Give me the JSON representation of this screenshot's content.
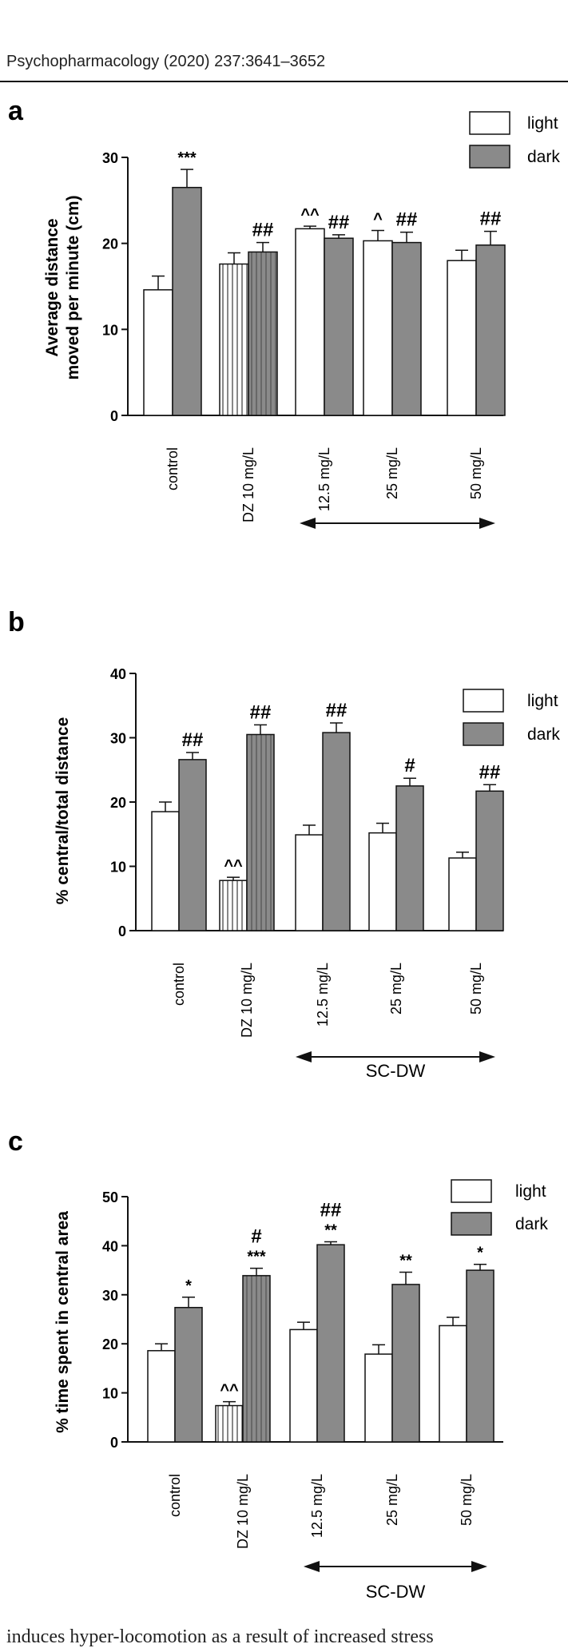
{
  "header": {
    "journal": "Psychopharmacology (2020) 237:3641–3652"
  },
  "footer": {
    "text": "induces hyper-locomotion as a result of increased stress"
  },
  "legend_labels": {
    "light": "light",
    "dark": "dark"
  },
  "group_label": "SC-DW",
  "chart_data": [
    {
      "panel": "a",
      "type": "bar",
      "ylabel": "Average distance moved per minute (cm)",
      "ylabel_lines": [
        "Average distance",
        "moved per minute (cm)"
      ],
      "ylim": [
        0,
        30
      ],
      "yticks": [
        0,
        10,
        20,
        30
      ],
      "categories": [
        "control",
        "DZ 10 mg/L",
        "12.5 mg/L",
        "25 mg/L",
        "50 mg/L"
      ],
      "series": [
        {
          "name": "light",
          "values": [
            14.6,
            17.6,
            21.7,
            20.3,
            18.0
          ],
          "errors": [
            1.6,
            1.3,
            0.3,
            1.2,
            1.2
          ]
        },
        {
          "name": "dark",
          "values": [
            26.5,
            19.0,
            20.6,
            20.1,
            19.8
          ],
          "errors": [
            2.1,
            1.1,
            0.4,
            1.2,
            1.6
          ]
        }
      ],
      "annotations": [
        {
          "category": 0,
          "series": "dark",
          "text": "***"
        },
        {
          "category": 1,
          "series": "dark",
          "text": "##"
        },
        {
          "category": 2,
          "series": "light",
          "text": "^^"
        },
        {
          "category": 2,
          "series": "dark",
          "text": "##"
        },
        {
          "category": 3,
          "series": "light",
          "text": "^"
        },
        {
          "category": 3,
          "series": "dark",
          "text": "##"
        },
        {
          "category": 4,
          "series": "dark",
          "text": "##"
        }
      ]
    },
    {
      "panel": "b",
      "type": "bar",
      "ylabel": "% central/total distance",
      "ylabel_lines": [
        "% central/total distance"
      ],
      "ylim": [
        0,
        40
      ],
      "yticks": [
        0,
        10,
        20,
        30,
        40
      ],
      "categories": [
        "control",
        "DZ 10 mg/L",
        "12.5 mg/L",
        "25 mg/L",
        "50 mg/L"
      ],
      "series": [
        {
          "name": "light",
          "values": [
            18.5,
            7.8,
            14.9,
            15.2,
            11.3
          ],
          "errors": [
            1.5,
            0.5,
            1.5,
            1.5,
            0.9
          ]
        },
        {
          "name": "dark",
          "values": [
            26.6,
            30.5,
            30.8,
            22.5,
            21.7
          ],
          "errors": [
            1.1,
            1.5,
            1.5,
            1.2,
            1.0
          ]
        }
      ],
      "annotations": [
        {
          "category": 0,
          "series": "dark",
          "text": "##"
        },
        {
          "category": 1,
          "series": "light",
          "text": "^^"
        },
        {
          "category": 1,
          "series": "dark",
          "text": "##"
        },
        {
          "category": 2,
          "series": "dark",
          "text": "##"
        },
        {
          "category": 3,
          "series": "dark",
          "text": "#"
        },
        {
          "category": 4,
          "series": "dark",
          "text": "##"
        }
      ]
    },
    {
      "panel": "c",
      "type": "bar",
      "ylabel": "% time spent in central area",
      "ylabel_lines": [
        "% time spent in central area"
      ],
      "ylim": [
        0,
        50
      ],
      "yticks": [
        0,
        10,
        20,
        30,
        40,
        50
      ],
      "categories": [
        "control",
        "DZ 10 mg/L",
        "12.5 mg/L",
        "25 mg/L",
        "50 mg/L"
      ],
      "series": [
        {
          "name": "light",
          "values": [
            18.6,
            7.4,
            22.9,
            17.9,
            23.7
          ],
          "errors": [
            1.4,
            0.8,
            1.5,
            1.9,
            1.7
          ]
        },
        {
          "name": "dark",
          "values": [
            27.4,
            33.9,
            40.2,
            32.1,
            35.0
          ],
          "errors": [
            2.1,
            1.5,
            0.6,
            2.5,
            1.2
          ]
        }
      ],
      "annotations": [
        {
          "category": 0,
          "series": "dark",
          "text": "*"
        },
        {
          "category": 1,
          "series": "light",
          "text": "^^"
        },
        {
          "category": 1,
          "series": "dark",
          "text": "***"
        },
        {
          "category": 1,
          "series": "dark",
          "text": "#"
        },
        {
          "category": 2,
          "series": "dark",
          "text": "**"
        },
        {
          "category": 2,
          "series": "dark",
          "text": "##"
        },
        {
          "category": 3,
          "series": "dark",
          "text": "**"
        },
        {
          "category": 4,
          "series": "dark",
          "text": "*"
        }
      ]
    }
  ],
  "colors": {
    "light": "#ffffff",
    "dark": "#8a8a8a",
    "axis": "#111111"
  }
}
